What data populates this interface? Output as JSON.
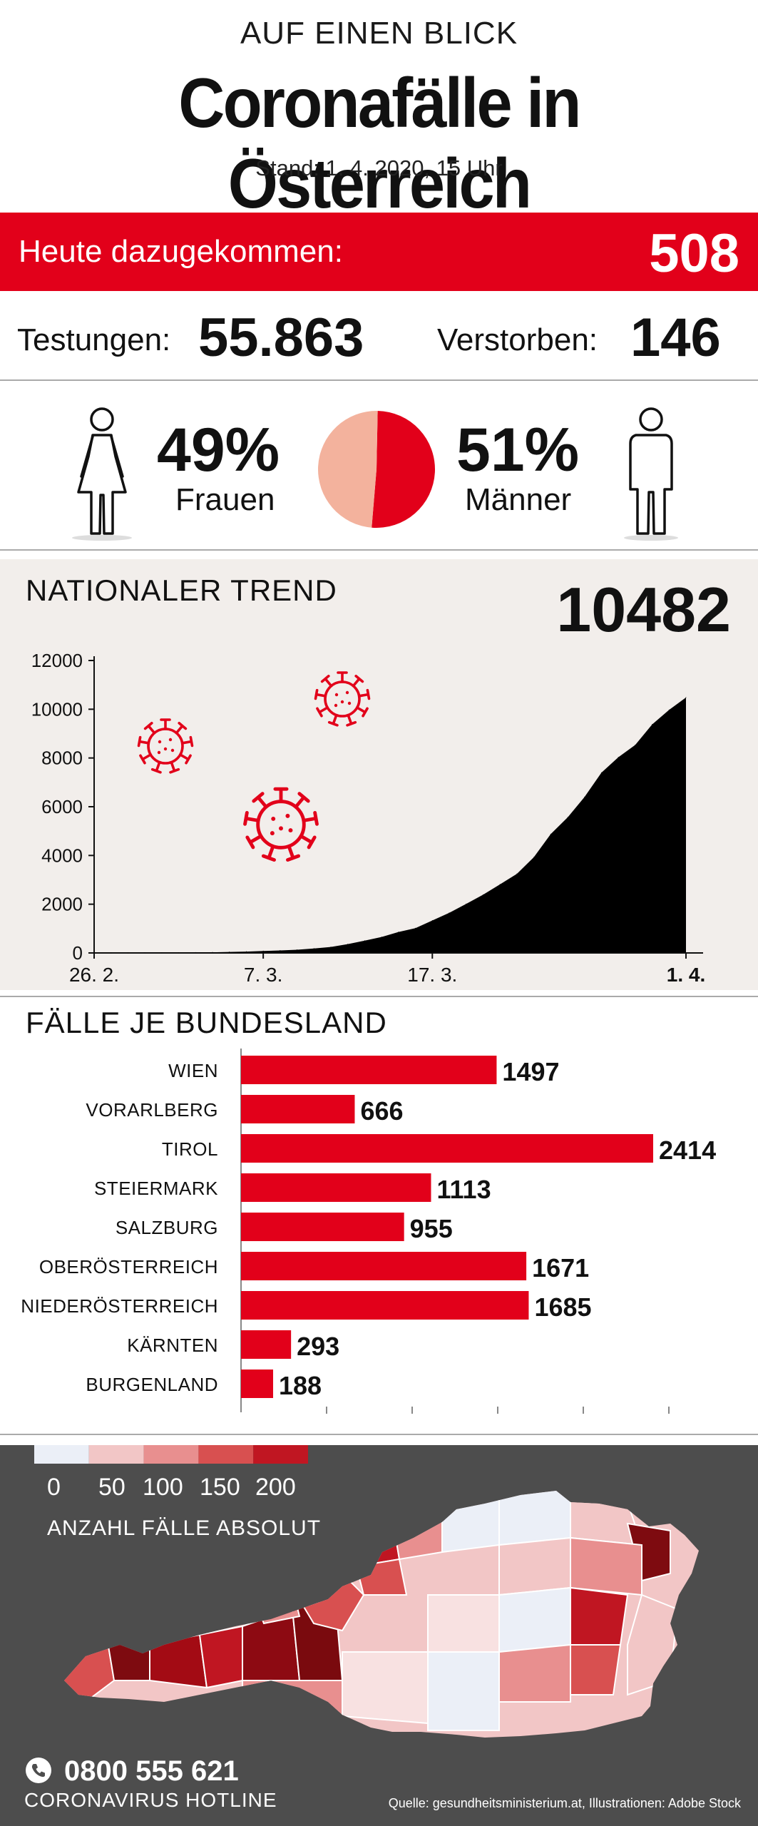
{
  "header": {
    "kicker": "AUF EINEN BLICK",
    "title": "Coronafälle in Österreich",
    "stand": "Stand: 1. 4. 2020, 15 Uhr"
  },
  "today": {
    "label": "Heute dazugekommen:",
    "value": "508"
  },
  "stats": {
    "tests_label": "Testungen:",
    "tests_value": "55.863",
    "deaths_label": "Verstorben:",
    "deaths_value": "146"
  },
  "gender": {
    "women_pct": "49%",
    "women_label": "Frauen",
    "men_pct": "51%",
    "men_label": "Männer",
    "women_share": 49,
    "men_share": 51
  },
  "colors": {
    "accent_red": "#e2001a",
    "women_slice": "#f3b29d",
    "panel_bg": "#f2eeeb",
    "map_bg": "#4d4d4d"
  },
  "icons": [
    "female-figure-icon",
    "male-figure-icon",
    "virus-icon",
    "phone-icon"
  ],
  "trend": {
    "title": "NATIONALER TREND",
    "total": "10482"
  },
  "bundes": {
    "title": "FÄLLE JE BUNDESLAND"
  },
  "legend": {
    "ticks": [
      "0",
      "50",
      "100",
      "150",
      "200"
    ],
    "colors": [
      "#ebeff7",
      "#f2c6c6",
      "#e88f8f",
      "#d85050",
      "#c01622"
    ],
    "caption": "ANZAHL FÄLLE ABSOLUT"
  },
  "hotline": {
    "number": "0800 555 621",
    "label": "CORONAVIRUS HOTLINE"
  },
  "source": "Quelle: gesundheitsministerium.at, Illustrationen: Adobe Stock",
  "chart_data": [
    {
      "type": "area",
      "title": "NATIONALER TREND",
      "x": [
        "26. 2.",
        "27. 2.",
        "28. 2.",
        "29. 2.",
        "1. 3.",
        "2. 3.",
        "3. 3.",
        "4. 3.",
        "5. 3.",
        "6. 3.",
        "7. 3.",
        "8. 3.",
        "9. 3.",
        "10. 3.",
        "11. 3.",
        "12. 3.",
        "13. 3.",
        "14. 3.",
        "15. 3.",
        "16. 3.",
        "17. 3.",
        "18. 3.",
        "19. 3.",
        "20. 3.",
        "21. 3.",
        "22. 3.",
        "23. 3.",
        "24. 3.",
        "25. 3.",
        "26. 3.",
        "27. 3.",
        "28. 3.",
        "29. 3.",
        "30. 3.",
        "31. 3.",
        "1. 4."
      ],
      "series": [
        {
          "values": [
            2,
            3,
            5,
            9,
            10,
            10,
            18,
            24,
            41,
            55,
            79,
            104,
            131,
            182,
            246,
            361,
            504,
            655,
            860,
            1016,
            1332,
            1646,
            2013,
            2388,
            2814,
            3244,
            3924,
            4876,
            5560,
            6398,
            7399,
            8030,
            8536,
            9377,
            9974,
            10482
          ]
        }
      ],
      "x_ticks": [
        "26. 2.",
        "7. 3.",
        "17. 3.",
        "1. 4."
      ],
      "y_ticks": [
        "0",
        "2000",
        "4000",
        "6000",
        "8000",
        "10000",
        "12000"
      ],
      "ylim": [
        0,
        12000
      ],
      "color": "#000000"
    },
    {
      "type": "bar",
      "title": "FÄLLE JE BUNDESLAND",
      "orientation": "horizontal",
      "categories": [
        "WIEN",
        "VORARLBERG",
        "TIROL",
        "STEIERMARK",
        "SALZBURG",
        "OBERÖSTERREICH",
        "NIEDERÖSTERREICH",
        "KÄRNTEN",
        "BURGENLAND"
      ],
      "values": [
        1497,
        666,
        2414,
        1113,
        955,
        1671,
        1685,
        293,
        188
      ],
      "value_labels": [
        "1497",
        "666",
        "2414",
        "1113",
        "955",
        "1671",
        "1685",
        "293",
        "188"
      ],
      "color": "#e2001a"
    },
    {
      "type": "pie",
      "categories": [
        "Frauen",
        "Männer"
      ],
      "values": [
        49,
        51
      ],
      "colors": [
        "#f3b29d",
        "#e2001a"
      ]
    }
  ]
}
